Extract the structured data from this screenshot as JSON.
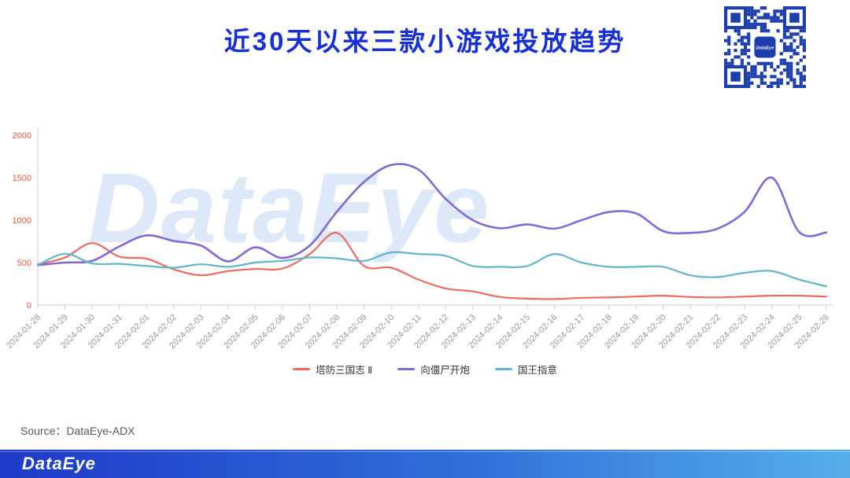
{
  "header": {
    "title": "近30天以来三款小游戏投放趋势"
  },
  "watermark": {
    "text": "DataEye"
  },
  "qr": {
    "color": "#1d3fae",
    "center_label": "DataEye"
  },
  "footer": {
    "source_label": "Source：DataEye-ADX",
    "logo_text": "DataEye"
  },
  "chart_data": {
    "type": "line",
    "title": "近30天以来三款小游戏投放趋势",
    "x": [
      "2024-01-28",
      "2024-01-29",
      "2024-01-30",
      "2024-01-31",
      "2024-02-01",
      "2024-02-02",
      "2024-02-03",
      "2024-02-04",
      "2024-02-05",
      "2024-02-06",
      "2024-02-07",
      "2024-02-08",
      "2024-02-09",
      "2024-02-10",
      "2024-02-11",
      "2024-02-12",
      "2024-02-13",
      "2024-02-14",
      "2024-02-15",
      "2024-02-16",
      "2024-02-17",
      "2024-02-18",
      "2024-02-19",
      "2024-02-20",
      "2024-02-21",
      "2024-02-22",
      "2024-02-23",
      "2024-02-24",
      "2024-02-25",
      "2024-02-26"
    ],
    "series": [
      {
        "name": "塔防三国志 Ⅱ",
        "color": "#ee6a5f",
        "values": [
          480,
          560,
          730,
          570,
          545,
          420,
          350,
          400,
          425,
          430,
          600,
          850,
          460,
          440,
          300,
          195,
          160,
          95,
          75,
          70,
          85,
          90,
          100,
          110,
          95,
          90,
          100,
          110,
          110,
          100
        ]
      },
      {
        "name": "向僵尸开炮",
        "color": "#8468d8",
        "values": [
          470,
          500,
          520,
          690,
          820,
          755,
          700,
          515,
          680,
          555,
          700,
          1100,
          1450,
          1650,
          1595,
          1250,
          1000,
          905,
          950,
          900,
          1000,
          1095,
          1080,
          870,
          850,
          900,
          1100,
          1500,
          860,
          855
        ]
      },
      {
        "name": "国王指意",
        "color": "#5fb6cc",
        "values": [
          470,
          605,
          490,
          485,
          460,
          440,
          480,
          450,
          500,
          520,
          560,
          550,
          520,
          620,
          600,
          580,
          460,
          450,
          460,
          600,
          500,
          450,
          450,
          450,
          350,
          330,
          380,
          400,
          300,
          220
        ]
      }
    ],
    "ylim": [
      0,
      2000
    ],
    "yticks": [
      0,
      500,
      1000,
      1500,
      2000
    ],
    "grid": false,
    "legend_position": "bottom",
    "colors": {
      "axis": "#cccccc",
      "y_labels": "#f0583a",
      "x_labels": "#999999",
      "title": "#1730d6",
      "watermark": "#dde8f8"
    }
  }
}
